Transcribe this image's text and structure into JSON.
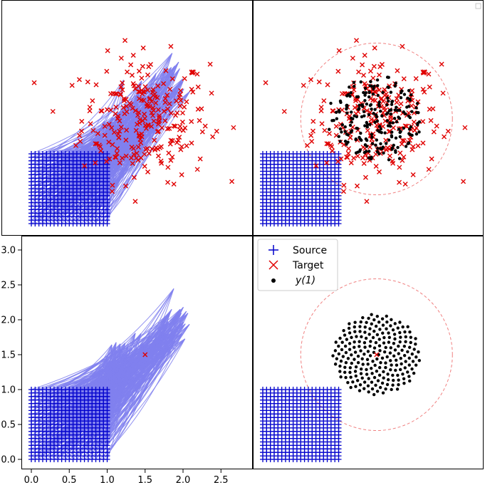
{
  "chart_data": {
    "type": "scatter",
    "layout": "2x2 grid, shared axes",
    "xlim": [
      -0.1,
      2.9
    ],
    "ylim": [
      -0.1,
      3.25
    ],
    "x_ticks": [
      0.0,
      0.5,
      1.0,
      1.5,
      2.0,
      2.5
    ],
    "x_tick_labels": [
      "0.0",
      "0.5",
      "1.0",
      "1.5",
      "2.0",
      "2.5"
    ],
    "y_ticks": [
      0.0,
      0.5,
      1.0,
      1.5,
      2.0,
      2.5,
      3.0
    ],
    "y_tick_labels": [
      "0.0",
      "0.5",
      "1.0",
      "1.5",
      "2.0",
      "2.5",
      "3.0"
    ],
    "source": {
      "description": "21 x 21 grid of points on [0,1] x [0,1]",
      "x_range": [
        0.0,
        1.0
      ],
      "y_range": [
        0.0,
        1.0
      ],
      "n_per_side": 21,
      "color": "#0000cc"
    },
    "target": {
      "description": "noisy cloud of points centred near (1.5, 1.5)",
      "center": [
        1.5,
        1.5
      ],
      "color": "#e00000"
    },
    "y1": {
      "description": "predicted points y(1), disc of radius about 0.6 around (1.5, 1.5)",
      "center": [
        1.5,
        1.5
      ],
      "color": "#000000"
    },
    "reference_circle": {
      "center": [
        1.5,
        1.5
      ],
      "radius": 1.0,
      "style": "dashed",
      "color": "#f08080"
    },
    "trajectory_color": "#8080ee",
    "legend": {
      "entries": [
        "Source",
        "Target",
        "y(1)"
      ],
      "location": "top-left of lower-right panel"
    },
    "panels": [
      {
        "name": "top-left",
        "content": "source grid, target points, trajectory lines"
      },
      {
        "name": "top-right",
        "content": "source grid, target points, y(1) points, dashed circle, empty legend box"
      },
      {
        "name": "bottom-left",
        "content": "source grid, trajectory lines, target point"
      },
      {
        "name": "bottom-right",
        "content": "source grid, y(1) points, dashed circle, legend"
      }
    ]
  }
}
